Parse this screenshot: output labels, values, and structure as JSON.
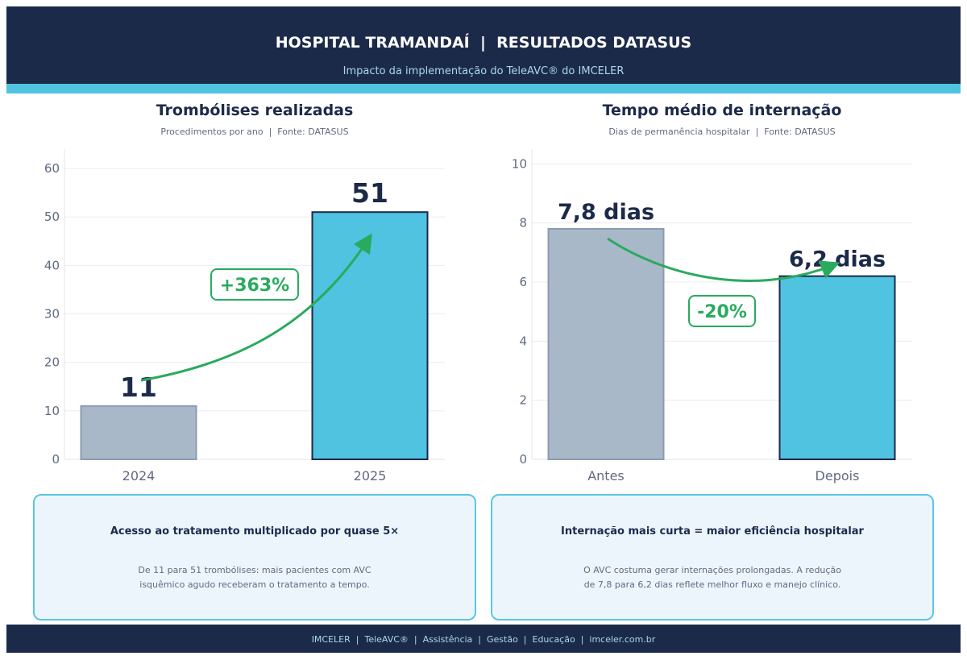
{
  "header": {
    "title": "HOSPITAL TRAMANDAÍ  |  RESULTADOS DATASUS",
    "subtitle": "Impacto da implementação do TeleAVC® do IMCELER"
  },
  "colors": {
    "navy": "#1c2a4a",
    "cyan": "#4fc3e0",
    "gray_bar": "#a8b8c8",
    "green": "#2aaa5e"
  },
  "chart_data": [
    {
      "type": "bar",
      "title": "Trombólises realizadas",
      "subtitle": "Procedimentos por ano  |  Fonte: DATASUS",
      "categories": [
        "2024",
        "2025"
      ],
      "values": [
        11,
        51
      ],
      "data_labels": [
        "11",
        "51"
      ],
      "ylim": [
        0,
        64
      ],
      "yticks": [
        0,
        10,
        20,
        30,
        40,
        50,
        60
      ],
      "ytick_labels": [
        "0",
        "10",
        "20",
        "30",
        "40",
        "50",
        "60"
      ],
      "bar_colors": [
        "#a8b8c8",
        "#4fc3e0"
      ],
      "grid": true,
      "annotation": "+363%"
    },
    {
      "type": "bar",
      "title": "Tempo médio de internação",
      "subtitle": "Dias de permanência hospitalar  |  Fonte: DATASUS",
      "categories": [
        "Antes",
        "Depois"
      ],
      "values": [
        7.8,
        6.2
      ],
      "data_labels": [
        "7,8 dias",
        "6,2 dias"
      ],
      "ylim": [
        0,
        10.5
      ],
      "yticks": [
        0,
        2,
        4,
        6,
        8,
        10
      ],
      "ytick_labels": [
        "0",
        "2",
        "4",
        "6",
        "8",
        "10"
      ],
      "bar_colors": [
        "#a8b8c8",
        "#4fc3e0"
      ],
      "grid": true,
      "annotation": "-20%"
    }
  ],
  "cards": [
    {
      "heading": "Acesso ao tratamento multiplicado por quase 5×",
      "body": "De 11 para 51 trombólises: mais pacientes com AVC\nisquêmico agudo receberam o tratamento a tempo."
    },
    {
      "heading": "Internação mais curta = maior eficiência hospitalar",
      "body": "O AVC costuma gerar internações prolongadas. A redução\nde 7,8 para 6,2 dias reflete melhor fluxo e manejo clínico."
    }
  ],
  "footer": "IMCELER  |  TeleAVC®  |  Assistência  |  Gestão  |  Educação  |  imceler.com.br"
}
